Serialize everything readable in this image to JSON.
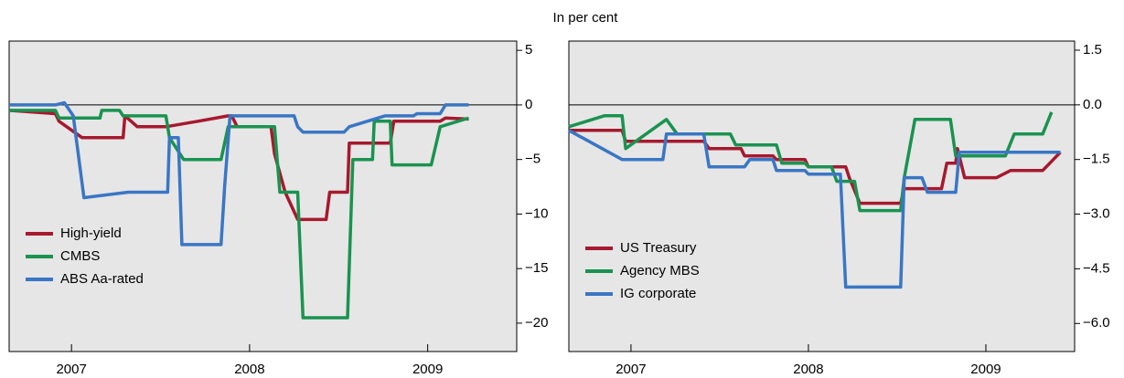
{
  "title": "In per cent",
  "chart_data": [
    {
      "type": "line",
      "xlim": [
        2007.15,
        2010.0
      ],
      "ylim": [
        -22.6,
        5.85
      ],
      "legend": "lower left",
      "xticks": [
        {
          "value": 2007.5,
          "label": "2007"
        },
        {
          "value": 2008.5,
          "label": "2008"
        },
        {
          "value": 2009.5,
          "label": "2009"
        }
      ],
      "yticks": [
        5,
        {
          "value": 0,
          "label": "0"
        },
        {
          "value": -5,
          "label": "−5"
        },
        {
          "value": -10,
          "label": "−10"
        },
        {
          "value": -15,
          "label": "−15"
        },
        {
          "value": -20,
          "label": "−20"
        }
      ],
      "series": [
        {
          "name": "High-yield",
          "color": "#a6192e",
          "x": [
            2007.15,
            2007.41,
            2007.43,
            2007.56,
            2007.79,
            2007.8,
            2007.87,
            2008.03,
            2008.21,
            2008.38,
            2008.4,
            2008.43,
            2008.62,
            2008.64,
            2008.7,
            2008.77,
            2008.93,
            2008.95,
            2009.05,
            2009.06,
            2009.29,
            2009.31,
            2009.57,
            2009.6,
            2009.73
          ],
          "values": [
            -0.5,
            -0.8,
            -1.5,
            -3,
            -3,
            -1,
            -2,
            -2,
            -1.5,
            -1,
            -1,
            -2,
            -2,
            -4.5,
            -8,
            -10.5,
            -10.5,
            -8,
            -8,
            -3.5,
            -3.5,
            -1.5,
            -1.5,
            -1.2,
            -1.3
          ]
        },
        {
          "name": "CMBS",
          "color": "#1a9350",
          "x": [
            2007.15,
            2007.41,
            2007.43,
            2007.66,
            2007.67,
            2007.77,
            2007.79,
            2008.03,
            2008.05,
            2008.13,
            2008.34,
            2008.38,
            2008.64,
            2008.67,
            2008.77,
            2008.8,
            2009.05,
            2009.08,
            2009.19,
            2009.2,
            2009.29,
            2009.3,
            2009.52,
            2009.57,
            2009.73
          ],
          "values": [
            -0.5,
            -0.5,
            -1.2,
            -1.2,
            -0.5,
            -0.5,
            -1,
            -1,
            -3,
            -5,
            -5,
            -2,
            -2,
            -8,
            -8,
            -19.5,
            -19.5,
            -5,
            -5,
            -1.5,
            -1.5,
            -5.5,
            -5.5,
            -2,
            -1.2
          ]
        },
        {
          "name": "ABS Aa-rated",
          "color": "#3a76c4",
          "x": [
            2007.15,
            2007.41,
            2007.46,
            2007.51,
            2007.57,
            2007.82,
            2008.04,
            2008.05,
            2008.1,
            2008.12,
            2008.34,
            2008.36,
            2008.39,
            2008.64,
            2008.75,
            2008.77,
            2008.8,
            2009.03,
            2009.06,
            2009.26,
            2009.42,
            2009.44,
            2009.57,
            2009.6,
            2009.73
          ],
          "values": [
            0,
            0,
            0.2,
            -1,
            -8.5,
            -8,
            -8,
            -3,
            -3,
            -12.8,
            -12.8,
            -7.5,
            -1,
            -1,
            -1,
            -2,
            -2.5,
            -2.5,
            -2,
            -1,
            -1,
            -0.8,
            -0.8,
            0,
            0
          ]
        }
      ]
    },
    {
      "type": "line",
      "xlim": [
        2007.15,
        2010.0
      ],
      "ylim": [
        -6.77,
        1.75
      ],
      "legend": "lower left",
      "xticks": [
        {
          "value": 2007.5,
          "label": "2007"
        },
        {
          "value": 2008.5,
          "label": "2008"
        },
        {
          "value": 2009.5,
          "label": "2009"
        }
      ],
      "yticks": [
        1.5,
        {
          "value": 0,
          "label": "0.0"
        },
        {
          "value": -1.5,
          "label": "−1.5"
        },
        {
          "value": -3,
          "label": "−3.0"
        },
        {
          "value": -4.5,
          "label": "−4.5"
        },
        {
          "value": -6,
          "label": "−6.0"
        }
      ],
      "series": [
        {
          "name": "US Treasury",
          "color": "#a6192e",
          "x": [
            2007.15,
            2007.45,
            2007.47,
            2007.91,
            2007.94,
            2008.12,
            2008.14,
            2008.3,
            2008.32,
            2008.48,
            2008.5,
            2008.71,
            2008.73,
            2008.79,
            2009.02,
            2009.04,
            2009.25,
            2009.28,
            2009.33,
            2009.34,
            2009.38,
            2009.56,
            2009.64,
            2009.82,
            2009.92
          ],
          "values": [
            -0.7,
            -0.7,
            -1,
            -1,
            -1.2,
            -1.2,
            -1.4,
            -1.4,
            -1.5,
            -1.5,
            -1.7,
            -1.7,
            -2,
            -2.7,
            -2.7,
            -2.3,
            -2.3,
            -1.6,
            -1.6,
            -1.2,
            -2,
            -2,
            -1.8,
            -1.8,
            -1.3
          ]
        },
        {
          "name": "Agency MBS",
          "color": "#1a9350",
          "x": [
            2007.15,
            2007.35,
            2007.45,
            2007.47,
            2007.7,
            2007.76,
            2008.06,
            2008.09,
            2008.32,
            2008.35,
            2008.48,
            2008.5,
            2008.63,
            2008.66,
            2008.76,
            2008.79,
            2009.02,
            2009.04,
            2009.1,
            2009.3,
            2009.33,
            2009.61,
            2009.66,
            2009.82,
            2009.87
          ],
          "values": [
            -0.6,
            -0.3,
            -0.3,
            -1.2,
            -0.4,
            -0.8,
            -0.8,
            -1.1,
            -1.1,
            -1.6,
            -1.6,
            -1.7,
            -1.7,
            -2.1,
            -2.1,
            -2.9,
            -2.9,
            -2,
            -0.4,
            -0.4,
            -1.4,
            -1.4,
            -0.8,
            -0.8,
            -0.2
          ]
        },
        {
          "name": "IG corporate",
          "color": "#3a76c4",
          "x": [
            2007.15,
            2007.45,
            2007.68,
            2007.7,
            2007.91,
            2007.94,
            2008.14,
            2008.17,
            2008.3,
            2008.32,
            2008.48,
            2008.5,
            2008.68,
            2008.71,
            2009.02,
            2009.04,
            2009.14,
            2009.17,
            2009.33,
            2009.35,
            2009.92
          ],
          "values": [
            -0.7,
            -1.5,
            -1.5,
            -0.8,
            -0.8,
            -1.7,
            -1.7,
            -1.5,
            -1.5,
            -1.8,
            -1.8,
            -1.9,
            -1.9,
            -5,
            -5,
            -2,
            -2,
            -2.4,
            -2.4,
            -1.3,
            -1.3
          ]
        }
      ]
    }
  ]
}
